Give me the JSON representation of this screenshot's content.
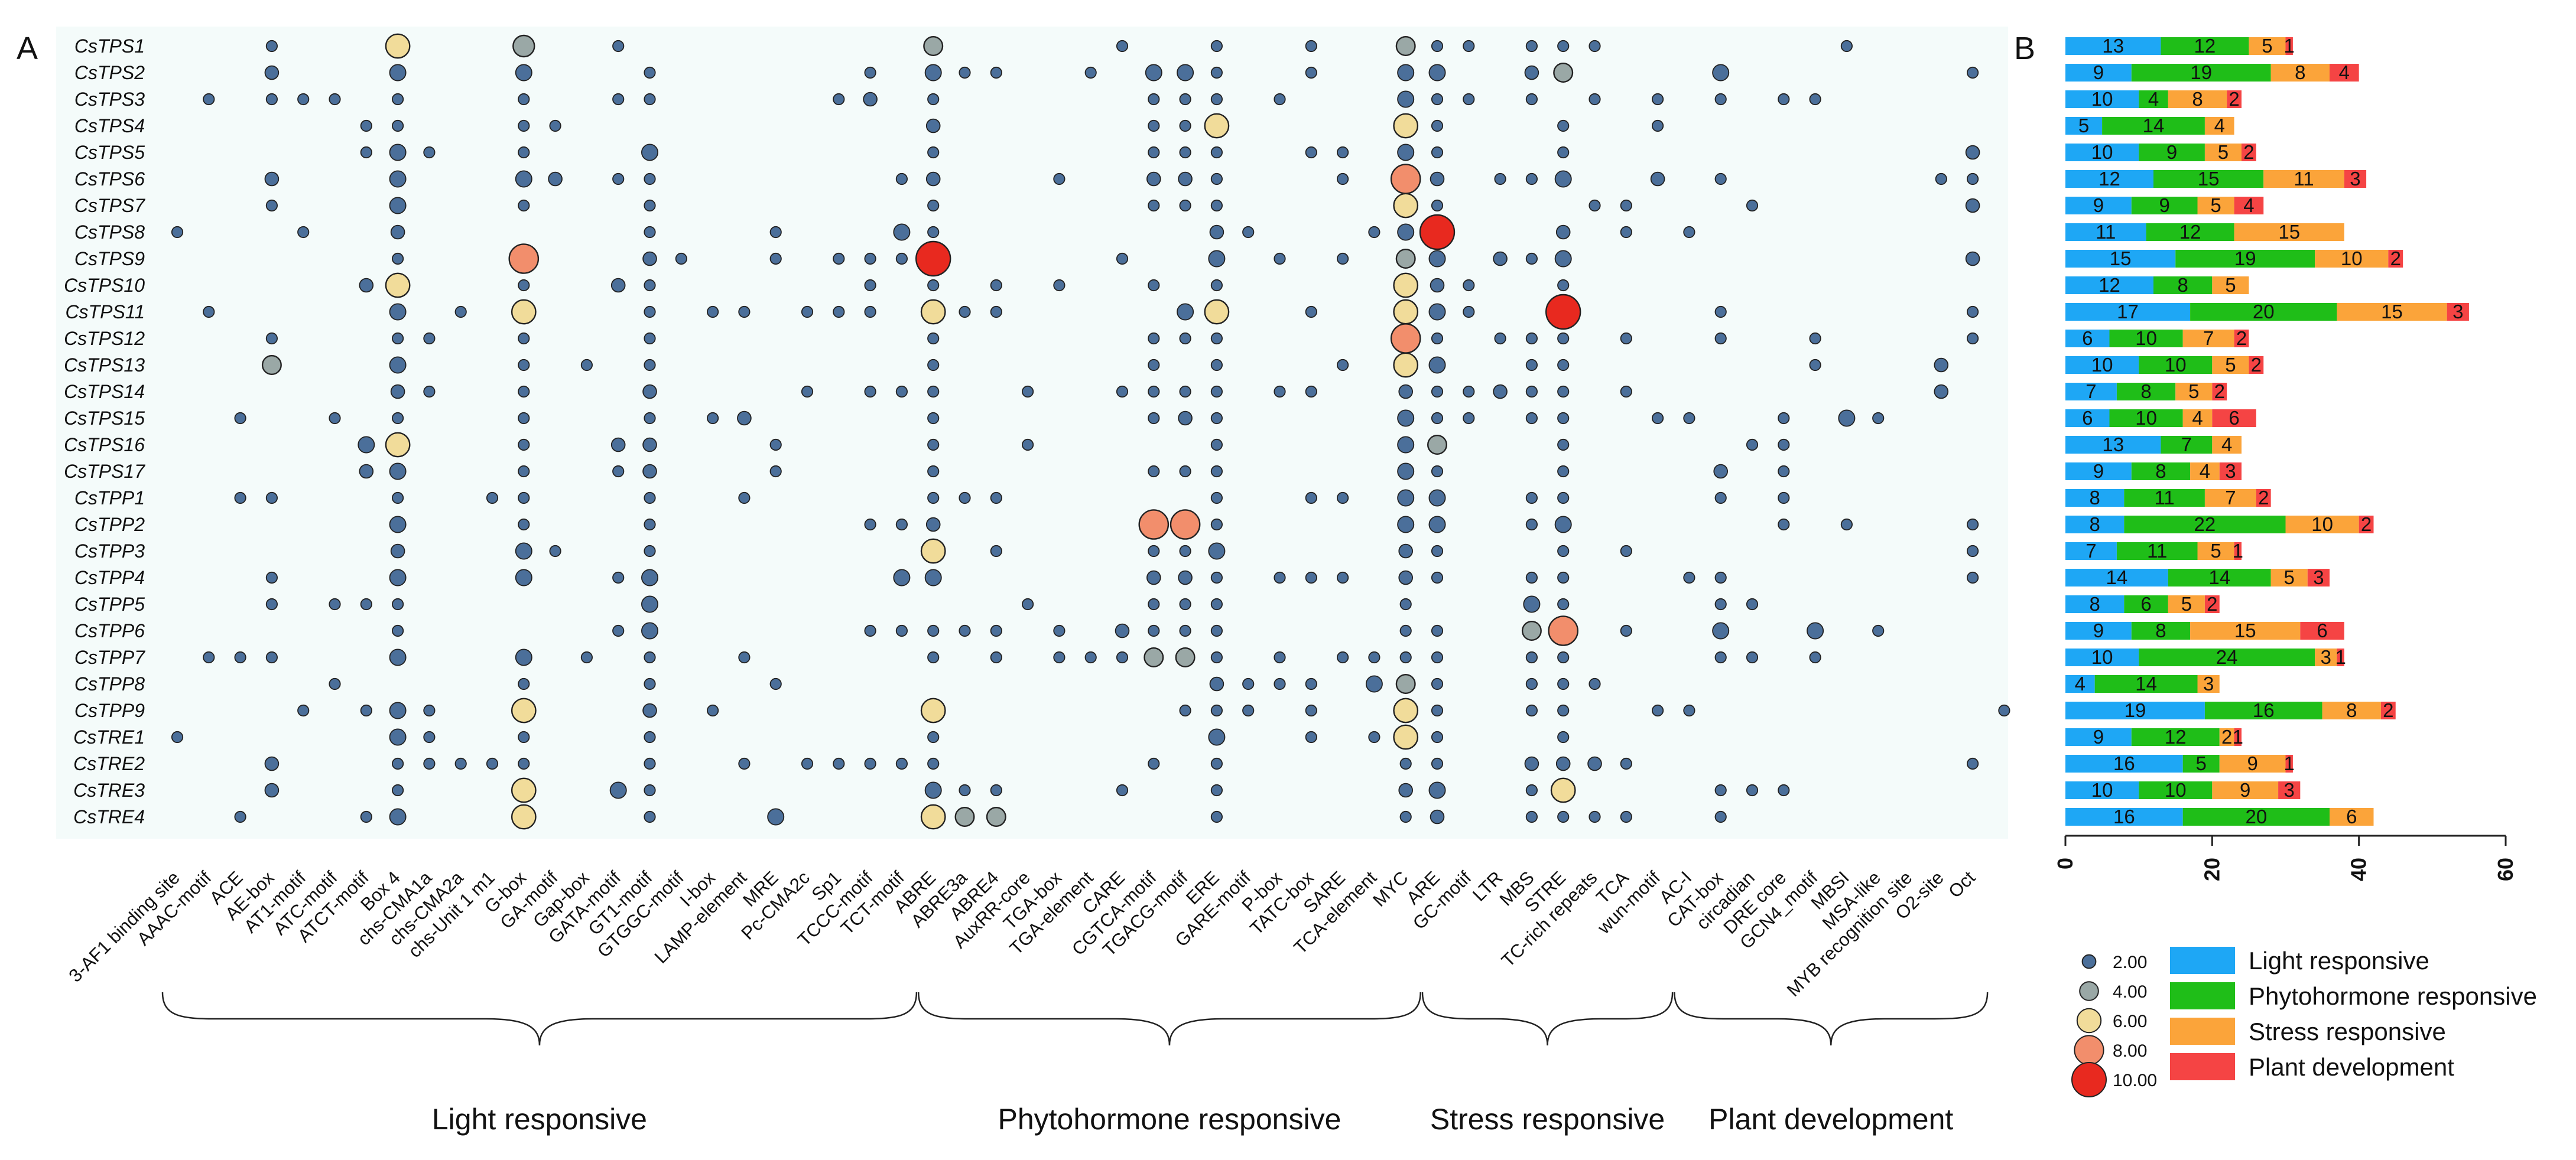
{
  "panel_a": {
    "label": "A"
  },
  "panel_b": {
    "label": "B"
  },
  "chart_data": [
    {
      "type": "scatter",
      "genes": [
        "CsTPS1",
        "CsTPS2",
        "CsTPS3",
        "CsTPS4",
        "CsTPS5",
        "CsTPS6",
        "CsTPS7",
        "CsTPS8",
        "CsTPS9",
        "CsTPS10",
        "CsTPS11",
        "CsTPS12",
        "CsTPS13",
        "CsTPS14",
        "CsTPS15",
        "CsTPS16",
        "CsTPS17",
        "CsTPP1",
        "CsTPP2",
        "CsTPP3",
        "CsTPP4",
        "CsTPP5",
        "CsTPP6",
        "CsTPP7",
        "CsTPP8",
        "CsTPP9",
        "CsTRE1",
        "CsTRE2",
        "CsTRE3",
        "CsTRE4"
      ],
      "elements": [
        "3-AF1 binding site",
        "AAAC-motif",
        "ACE",
        "AE-box",
        "AT1-motif",
        "ATC-motif",
        "ATCT-motif",
        "Box 4",
        "chs-CMA1a",
        "chs-CMA2a",
        "chs-Unit 1 m1",
        "G-box",
        "GA-motif",
        "Gap-box",
        "GATA-motif",
        "GT1-motif",
        "GTGGC-motif",
        "I-box",
        "LAMP-element",
        "MRE",
        "Pc-CMA2c",
        "Sp1",
        "TCCC-motif",
        "TCT-motif",
        "ABRE",
        "ABRE3a",
        "ABRE4",
        "AuxRR-core",
        "TGA-box",
        "TGA-element",
        "CARE",
        "CGTCA-motif",
        "TGACG-motif",
        "ERE",
        "GARE-motif",
        "P-box",
        "TATC-box",
        "SARE",
        "TCA-element",
        "MYC",
        "ARE",
        "GC-motif",
        "LTR",
        "MBS",
        "STRE",
        "TC-rich repeats",
        "TCA",
        "wun-motif",
        "AC-I",
        "CAT-box",
        "circadian",
        "DRE core",
        "GCN4_motif",
        "MBSI",
        "MSA-like",
        "MYB recognition site",
        "O2-site",
        "Oct"
      ],
      "groups": [
        {
          "name": "Light responsive",
          "first": 0,
          "last": 23
        },
        {
          "name": "Phytohormone responsive",
          "first": 24,
          "last": 39
        },
        {
          "name": "Stress responsive",
          "first": 40,
          "last": 47
        },
        {
          "name": "Plant development",
          "first": 48,
          "last": 57
        }
      ],
      "size_legend": [
        {
          "value": 2,
          "label": "2.00",
          "color": "#4b6f9a"
        },
        {
          "value": 4,
          "label": "4.00",
          "color": "#9aa8a6"
        },
        {
          "value": 6,
          "label": "6.00",
          "color": "#f1dc9a"
        },
        {
          "value": 8,
          "label": "8.00",
          "color": "#f28e6c"
        },
        {
          "value": 10,
          "label": "10.00",
          "color": "#e8291f"
        }
      ],
      "counts": [
        {
          "3": 1,
          "7": 6,
          "11": 5,
          "14": 1,
          "24": 4,
          "30": 1,
          "33": 1,
          "36": 1,
          "39": 4,
          "40": 1,
          "41": 1,
          "43": 1,
          "44": 1,
          "45": 1,
          "53": 1
        },
        {
          "3": 2,
          "7": 3,
          "11": 3,
          "15": 1,
          "22": 1,
          "24": 3,
          "25": 1,
          "26": 1,
          "29": 1,
          "31": 3,
          "32": 3,
          "33": 1,
          "36": 1,
          "39": 3,
          "40": 3,
          "43": 2,
          "44": 4,
          "49": 3,
          "57": 1
        },
        {
          "1": 1,
          "3": 1,
          "4": 1,
          "5": 1,
          "7": 1,
          "11": 1,
          "14": 1,
          "15": 1,
          "21": 1,
          "22": 2,
          "24": 1,
          "31": 1,
          "32": 1,
          "33": 1,
          "35": 1,
          "39": 3,
          "40": 1,
          "41": 1,
          "43": 1,
          "45": 1,
          "47": 1,
          "49": 1,
          "51": 1,
          "52": 1
        },
        {
          "6": 1,
          "7": 1,
          "11": 1,
          "12": 1,
          "24": 2,
          "31": 1,
          "32": 1,
          "33": 6,
          "39": 6,
          "40": 1,
          "44": 1,
          "47": 1
        },
        {
          "6": 1,
          "7": 3,
          "8": 1,
          "11": 1,
          "15": 3,
          "24": 1,
          "31": 1,
          "32": 1,
          "33": 1,
          "36": 1,
          "37": 1,
          "39": 3,
          "40": 1,
          "44": 1,
          "57": 2
        },
        {
          "3": 2,
          "7": 3,
          "11": 3,
          "12": 2,
          "14": 1,
          "15": 1,
          "23": 1,
          "24": 2,
          "28": 1,
          "31": 2,
          "32": 2,
          "33": 1,
          "37": 1,
          "39": 8,
          "40": 2,
          "42": 1,
          "43": 1,
          "44": 3,
          "47": 2,
          "49": 1,
          "56": 1,
          "57": 1
        },
        {
          "3": 1,
          "7": 3,
          "11": 1,
          "15": 1,
          "24": 1,
          "31": 1,
          "32": 1,
          "33": 1,
          "39": 6,
          "40": 1,
          "45": 1,
          "46": 1,
          "50": 1,
          "57": 2
        },
        {
          "0": 1,
          "4": 1,
          "7": 2,
          "15": 1,
          "19": 1,
          "23": 3,
          "24": 1,
          "33": 2,
          "34": 1,
          "38": 1,
          "39": 3,
          "40": 10,
          "44": 2,
          "46": 1,
          "48": 1
        },
        {
          "7": 1,
          "11": 8,
          "15": 2,
          "16": 1,
          "19": 1,
          "21": 1,
          "22": 1,
          "23": 1,
          "24": 10,
          "30": 1,
          "33": 3,
          "35": 1,
          "37": 1,
          "39": 4,
          "40": 3,
          "42": 2,
          "43": 1,
          "44": 3,
          "57": 2
        },
        {
          "6": 2,
          "7": 6,
          "11": 1,
          "14": 2,
          "15": 1,
          "22": 1,
          "24": 1,
          "26": 1,
          "28": 1,
          "31": 1,
          "33": 1,
          "39": 6,
          "40": 2,
          "41": 1,
          "44": 1
        },
        {
          "1": 1,
          "7": 3,
          "9": 1,
          "11": 6,
          "15": 1,
          "17": 1,
          "18": 1,
          "20": 1,
          "21": 1,
          "22": 1,
          "24": 6,
          "25": 1,
          "26": 1,
          "32": 3,
          "33": 6,
          "36": 1,
          "39": 6,
          "40": 3,
          "41": 1,
          "44": 10,
          "49": 1,
          "57": 1
        },
        {
          "3": 1,
          "7": 1,
          "8": 1,
          "11": 1,
          "15": 1,
          "24": 1,
          "31": 1,
          "32": 1,
          "33": 1,
          "39": 8,
          "40": 1,
          "42": 1,
          "43": 1,
          "44": 1,
          "46": 1,
          "49": 1,
          "52": 1,
          "57": 1
        },
        {
          "3": 4,
          "7": 3,
          "11": 1,
          "13": 1,
          "15": 1,
          "24": 1,
          "31": 1,
          "33": 1,
          "37": 1,
          "39": 6,
          "40": 3,
          "43": 1,
          "44": 1,
          "52": 1,
          "56": 2
        },
        {
          "7": 2,
          "8": 1,
          "11": 1,
          "15": 2,
          "20": 1,
          "22": 1,
          "23": 1,
          "24": 1,
          "27": 1,
          "30": 1,
          "31": 1,
          "32": 1,
          "33": 1,
          "35": 1,
          "36": 1,
          "39": 2,
          "40": 1,
          "41": 1,
          "42": 2,
          "43": 1,
          "44": 1,
          "46": 1,
          "56": 2
        },
        {
          "2": 1,
          "5": 1,
          "7": 1,
          "11": 1,
          "15": 1,
          "17": 1,
          "18": 2,
          "24": 1,
          "31": 1,
          "32": 2,
          "33": 1,
          "39": 3,
          "40": 1,
          "41": 1,
          "43": 1,
          "44": 1,
          "47": 1,
          "48": 1,
          "51": 1,
          "53": 3,
          "54": 1
        },
        {
          "6": 3,
          "7": 6,
          "11": 1,
          "14": 2,
          "15": 2,
          "19": 1,
          "24": 1,
          "27": 1,
          "33": 1,
          "39": 3,
          "40": 4,
          "44": 1,
          "50": 1,
          "51": 1
        },
        {
          "6": 2,
          "7": 3,
          "11": 1,
          "14": 1,
          "15": 2,
          "19": 1,
          "24": 1,
          "31": 1,
          "32": 1,
          "33": 1,
          "39": 3,
          "40": 1,
          "44": 1,
          "49": 2,
          "51": 1
        },
        {
          "2": 1,
          "3": 1,
          "7": 1,
          "10": 1,
          "11": 1,
          "15": 1,
          "18": 1,
          "24": 1,
          "25": 1,
          "26": 1,
          "33": 1,
          "36": 1,
          "37": 1,
          "39": 3,
          "40": 3,
          "43": 1,
          "44": 1,
          "49": 1,
          "51": 1
        },
        {
          "7": 3,
          "11": 1,
          "15": 1,
          "22": 1,
          "23": 1,
          "24": 2,
          "31": 8,
          "32": 8,
          "33": 1,
          "39": 3,
          "40": 3,
          "43": 1,
          "44": 3,
          "51": 1,
          "53": 1,
          "57": 1
        },
        {
          "7": 2,
          "11": 3,
          "12": 1,
          "15": 1,
          "24": 6,
          "26": 1,
          "31": 1,
          "32": 1,
          "33": 3,
          "39": 2,
          "40": 1,
          "44": 1,
          "46": 1,
          "57": 1
        },
        {
          "3": 1,
          "7": 3,
          "11": 3,
          "14": 1,
          "15": 3,
          "23": 3,
          "24": 3,
          "31": 2,
          "32": 2,
          "33": 1,
          "35": 1,
          "36": 1,
          "37": 1,
          "39": 2,
          "40": 1,
          "43": 1,
          "44": 1,
          "48": 1,
          "49": 1,
          "57": 1
        },
        {
          "3": 1,
          "5": 1,
          "6": 1,
          "7": 1,
          "15": 3,
          "27": 1,
          "31": 1,
          "32": 1,
          "33": 1,
          "39": 1,
          "43": 3,
          "44": 1,
          "49": 1,
          "50": 1
        },
        {
          "7": 1,
          "14": 1,
          "15": 3,
          "22": 1,
          "23": 1,
          "24": 1,
          "25": 1,
          "26": 1,
          "28": 1,
          "30": 2,
          "31": 1,
          "32": 1,
          "33": 1,
          "39": 1,
          "40": 1,
          "43": 4,
          "44": 8,
          "46": 1,
          "49": 3,
          "52": 3,
          "54": 1
        },
        {
          "1": 1,
          "2": 1,
          "3": 1,
          "7": 3,
          "11": 3,
          "13": 1,
          "15": 1,
          "18": 1,
          "24": 1,
          "26": 1,
          "28": 1,
          "29": 1,
          "30": 1,
          "31": 4,
          "32": 4,
          "33": 1,
          "35": 1,
          "37": 1,
          "38": 1,
          "39": 1,
          "40": 1,
          "43": 1,
          "44": 1,
          "49": 1,
          "50": 1,
          "52": 1
        },
        {
          "5": 1,
          "11": 1,
          "15": 1,
          "19": 1,
          "33": 2,
          "34": 1,
          "35": 1,
          "36": 1,
          "38": 3,
          "39": 4,
          "40": 1,
          "43": 1,
          "44": 1,
          "45": 1
        },
        {
          "4": 1,
          "6": 1,
          "7": 3,
          "8": 1,
          "11": 6,
          "15": 2,
          "17": 1,
          "24": 6,
          "32": 1,
          "33": 1,
          "34": 1,
          "36": 1,
          "39": 6,
          "40": 1,
          "43": 1,
          "44": 1,
          "47": 1,
          "48": 1,
          "58": 1
        },
        {
          "0": 1,
          "7": 3,
          "8": 1,
          "11": 1,
          "15": 1,
          "24": 1,
          "33": 3,
          "36": 1,
          "38": 1,
          "39": 6,
          "40": 1,
          "44": 1
        },
        {
          "3": 2,
          "7": 1,
          "8": 1,
          "9": 1,
          "10": 1,
          "11": 1,
          "15": 1,
          "18": 1,
          "20": 1,
          "21": 1,
          "22": 1,
          "23": 1,
          "24": 1,
          "31": 1,
          "33": 1,
          "39": 1,
          "40": 1,
          "43": 2,
          "44": 2,
          "45": 2,
          "46": 1,
          "57": 1
        },
        {
          "3": 2,
          "7": 1,
          "11": 6,
          "14": 3,
          "15": 1,
          "24": 3,
          "25": 1,
          "26": 1,
          "30": 1,
          "33": 1,
          "39": 2,
          "40": 3,
          "43": 1,
          "44": 6,
          "49": 1,
          "50": 1,
          "51": 1
        },
        {
          "2": 1,
          "6": 1,
          "7": 3,
          "11": 6,
          "15": 1,
          "19": 3,
          "24": 6,
          "25": 4,
          "26": 4,
          "33": 1,
          "39": 1,
          "40": 2,
          "43": 1,
          "44": 1,
          "45": 1,
          "46": 1,
          "49": 1
        }
      ]
    },
    {
      "type": "bar",
      "stacked": true,
      "orientation": "horizontal",
      "categories": [
        "CsTPS1",
        "CsTPS2",
        "CsTPS3",
        "CsTPS4",
        "CsTPS5",
        "CsTPS6",
        "CsTPS7",
        "CsTPS8",
        "CsTPS9",
        "CsTPS10",
        "CsTPS11",
        "CsTPS12",
        "CsTPS13",
        "CsTPS14",
        "CsTPS15",
        "CsTPS16",
        "CsTPS17",
        "CsTPP1",
        "CsTPP2",
        "CsTPP3",
        "CsTPP4",
        "CsTPP5",
        "CsTPP6",
        "CsTPP7",
        "CsTPP8",
        "CsTPP9",
        "CsTRE1",
        "CsTRE2",
        "CsTRE3",
        "CsTRE4"
      ],
      "xlim": [
        0,
        60
      ],
      "xticks": [
        0,
        20,
        40,
        60
      ],
      "series": [
        {
          "name": "Light responsive",
          "color": "#1ea7f5",
          "values": [
            13,
            9,
            10,
            5,
            10,
            12,
            9,
            11,
            15,
            12,
            17,
            6,
            10,
            7,
            6,
            13,
            9,
            8,
            8,
            7,
            14,
            8,
            9,
            10,
            4,
            19,
            9,
            16,
            10,
            16
          ]
        },
        {
          "name": "Phytohormone responsive",
          "color": "#1fbe18",
          "values": [
            12,
            19,
            4,
            14,
            9,
            15,
            9,
            12,
            19,
            8,
            20,
            10,
            10,
            8,
            10,
            7,
            8,
            11,
            22,
            11,
            14,
            6,
            8,
            24,
            14,
            16,
            12,
            5,
            10,
            20
          ]
        },
        {
          "name": "Stress responsive",
          "color": "#fba43a",
          "values": [
            5,
            8,
            8,
            4,
            5,
            11,
            5,
            15,
            10,
            5,
            15,
            7,
            5,
            5,
            4,
            4,
            4,
            7,
            10,
            5,
            5,
            5,
            15,
            3,
            3,
            8,
            2,
            9,
            9,
            6
          ]
        },
        {
          "name": "Plant development",
          "color": "#f54444",
          "values": [
            1,
            4,
            2,
            0,
            2,
            3,
            4,
            0,
            2,
            0,
            3,
            2,
            2,
            2,
            6,
            0,
            3,
            2,
            2,
            1,
            3,
            2,
            6,
            1,
            0,
            2,
            1,
            1,
            3,
            0
          ]
        }
      ]
    }
  ]
}
